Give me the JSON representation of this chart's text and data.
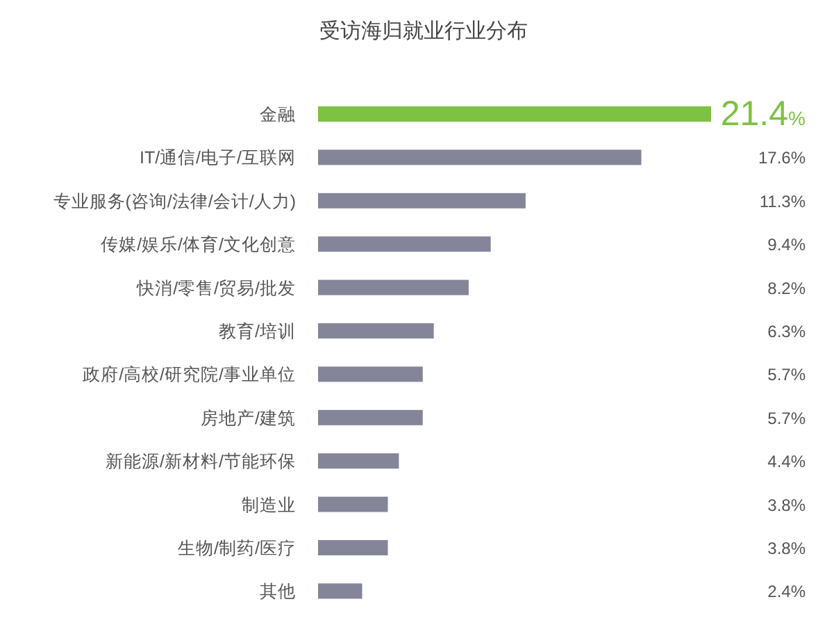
{
  "chart_data": {
    "type": "bar",
    "orientation": "horizontal",
    "title": "受访海归就业行业分布",
    "categories": [
      "金融",
      "IT/通信/电子/互联网",
      "专业服务(咨询/法律/会计/人力)",
      "传媒/娱乐/体育/文化创意",
      "快消/零售/贸易/批发",
      "教育/培训",
      "政府/高校/研究院/事业单位",
      "房地产/建筑",
      "新能源/新材料/节能环保",
      "制造业",
      "生物/制药/医疗",
      "其他"
    ],
    "values": [
      21.4,
      17.6,
      11.3,
      9.4,
      8.2,
      6.3,
      5.7,
      5.7,
      4.4,
      3.8,
      3.8,
      2.4
    ],
    "colors": [
      "#7dc242",
      "#85859a",
      "#85859a",
      "#85859a",
      "#85859a",
      "#85859a",
      "#85859a",
      "#85859a",
      "#85859a",
      "#85859a",
      "#85859a",
      "#85859a"
    ],
    "value_labels": [
      "21.4%",
      "17.6%",
      "11.3%",
      "9.4%",
      "8.2%",
      "6.3%",
      "5.7%",
      "5.7%",
      "4.4%",
      "3.8%",
      "3.8%",
      "2.4%"
    ]
  }
}
